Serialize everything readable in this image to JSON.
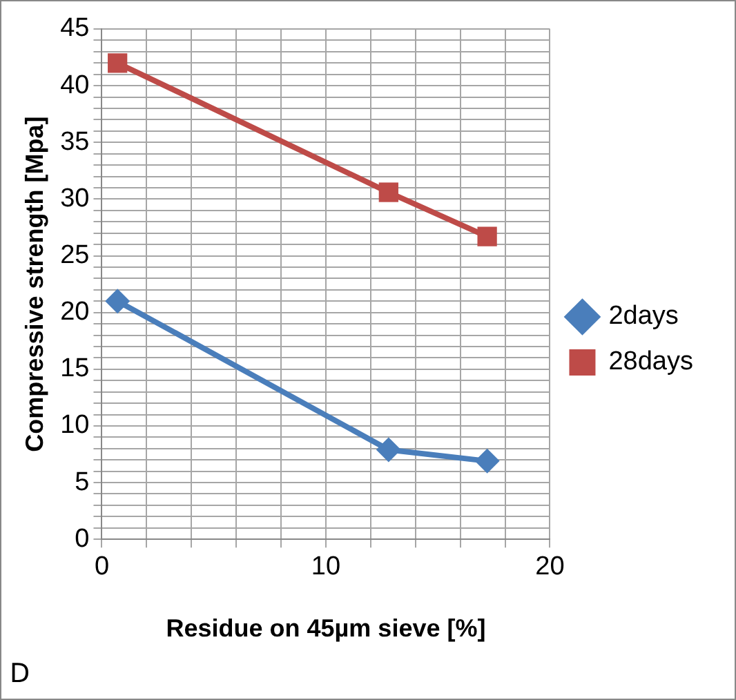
{
  "chart_data": {
    "type": "line",
    "xlabel": "Residue on 45µm sieve [%]",
    "ylabel": "Compressive strength [Mpa]",
    "series": [
      {
        "name": "2days",
        "color": "#4a7ebb",
        "marker": "diamond",
        "x": [
          0.7,
          12.8,
          17.2
        ],
        "values": [
          21,
          7.9,
          6.9
        ]
      },
      {
        "name": "28days",
        "color": "#be4b48",
        "marker": "square",
        "x": [
          0.7,
          12.8,
          17.2
        ],
        "values": [
          42,
          30.6,
          26.7
        ]
      }
    ],
    "xlim": [
      0,
      20
    ],
    "xticks": [
      0,
      {
        "value": 2,
        "label": null
      },
      {
        "value": 4,
        "label": null
      },
      {
        "value": 6,
        "label": null
      },
      {
        "value": 8,
        "label": null
      },
      10,
      {
        "value": 12,
        "label": null
      },
      {
        "value": 14,
        "label": null
      },
      {
        "value": 16,
        "label": null
      },
      {
        "value": 18,
        "label": null
      },
      20
    ],
    "ylim": [
      0,
      45
    ],
    "yticks": [
      0,
      {
        "value": 1,
        "label": null
      },
      {
        "value": 2,
        "label": null
      },
      {
        "value": 3,
        "label": null
      },
      {
        "value": 4,
        "label": null
      },
      5,
      {
        "value": 6,
        "label": null
      },
      {
        "value": 7,
        "label": null
      },
      {
        "value": 8,
        "label": null
      },
      {
        "value": 9,
        "label": null
      },
      10,
      {
        "value": 11,
        "label": null
      },
      {
        "value": 12,
        "label": null
      },
      {
        "value": 13,
        "label": null
      },
      {
        "value": 14,
        "label": null
      },
      15,
      {
        "value": 16,
        "label": null
      },
      {
        "value": 17,
        "label": null
      },
      {
        "value": 18,
        "label": null
      },
      {
        "value": 19,
        "label": null
      },
      20,
      {
        "value": 21,
        "label": null
      },
      {
        "value": 22,
        "label": null
      },
      {
        "value": 23,
        "label": null
      },
      {
        "value": 24,
        "label": null
      },
      25,
      {
        "value": 26,
        "label": null
      },
      {
        "value": 27,
        "label": null
      },
      {
        "value": 28,
        "label": null
      },
      {
        "value": 29,
        "label": null
      },
      30,
      {
        "value": 31,
        "label": null
      },
      {
        "value": 32,
        "label": null
      },
      {
        "value": 33,
        "label": null
      },
      {
        "value": 34,
        "label": null
      },
      35,
      {
        "value": 36,
        "label": null
      },
      {
        "value": 37,
        "label": null
      },
      {
        "value": 38,
        "label": null
      },
      {
        "value": 39,
        "label": null
      },
      40,
      {
        "value": 41,
        "label": null
      },
      {
        "value": 42,
        "label": null
      },
      {
        "value": 43,
        "label": null
      },
      {
        "value": 44,
        "label": null
      },
      45
    ],
    "grid": true,
    "legend": "right",
    "line_style": "solid",
    "annotations": [
      "D"
    ]
  }
}
